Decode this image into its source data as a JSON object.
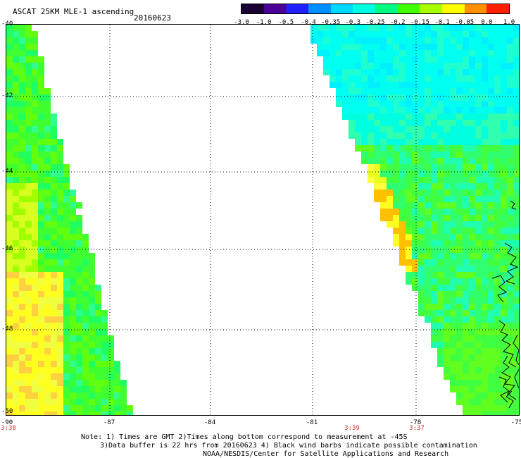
{
  "header": {
    "title": "ASCAT 25KM MLE-1 ascending",
    "date": "20160623"
  },
  "colorbar": {
    "ticks": [
      "-3.0",
      "-1.0",
      "-0.5",
      "-0.4",
      "-0.35",
      "-0.3",
      "-0.25",
      "-0.2",
      "-0.15",
      "-0.1",
      "-0.05",
      "0.0",
      "1.0"
    ],
    "colors": [
      "#1a0030",
      "#4b0096",
      "#2020ff",
      "#0090ff",
      "#00d8ff",
      "#00ffe0",
      "#00ff80",
      "#40ff00",
      "#a8ff00",
      "#ffff00",
      "#ff9000",
      "#ff2000"
    ]
  },
  "axes": {
    "lat_labels": [
      "-40",
      "-42",
      "-44",
      "-46",
      "-48",
      "-50"
    ],
    "lon_labels": [
      "-90",
      "-87",
      "-84",
      "-81",
      "-78",
      "-75"
    ],
    "time_labels": [
      "3:38",
      "3:39",
      "3:37"
    ]
  },
  "notes": {
    "line1": "Note: 1) Times are GMT 2)Times along bottom correspond to measurement at -45S",
    "line2": "3)Data buffer is 22 hrs from 20160623 4) Black wind barbs indicate possible contamination",
    "line3": "NOAA/NESDIS/Center for Satellite Applications and Research"
  }
}
